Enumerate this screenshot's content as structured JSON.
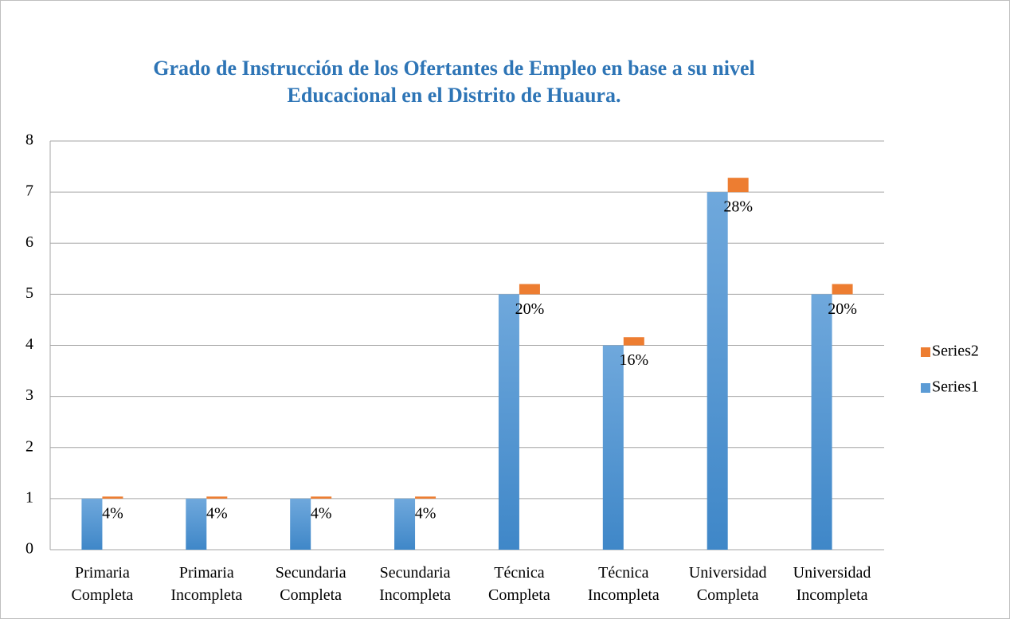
{
  "chart_data": {
    "type": "stacked_bar",
    "title": "Grado de Instrucción de los Ofertantes de Empleo en base a  su nivel",
    "subtitle": "Educacional  en el Distrito de Huaura.",
    "categories": [
      "Primaria Completa",
      "Primaria Incompleta",
      "Secundaria Completa",
      "Secundaria Incompleta",
      "Técnica Completa",
      "Técnica Incompleta",
      "Universidad Completa",
      "Universidad Incompleta"
    ],
    "series": [
      {
        "name": "Series1",
        "color": "#5b9bd5",
        "values": [
          1,
          1,
          1,
          1,
          5,
          4,
          7,
          5
        ]
      },
      {
        "name": "Series2",
        "color": "#ed7d31",
        "values": [
          0.04,
          0.04,
          0.04,
          0.04,
          0.2,
          0.16,
          0.28,
          0.2
        ],
        "value_labels": [
          "4%",
          "4%",
          "4%",
          "4%",
          "20%",
          "16%",
          "28%",
          "20%"
        ]
      }
    ],
    "ylim": [
      0,
      8
    ],
    "yticks": [
      0,
      1,
      2,
      3,
      4,
      5,
      6,
      7,
      8
    ],
    "grid": true,
    "legend": "right"
  }
}
